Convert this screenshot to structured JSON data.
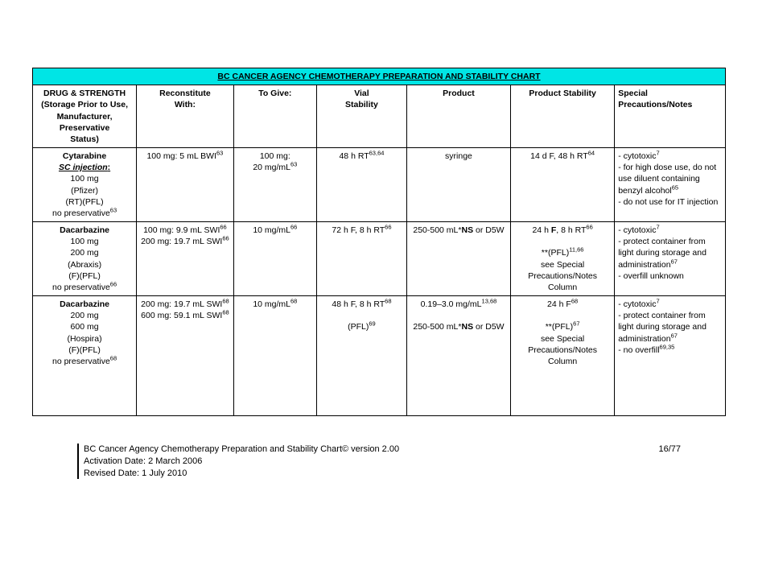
{
  "title": "BC CANCER AGENCY CHEMOTHERAPY PREPARATION AND STABILITY CHART",
  "columns": [
    "DRUG & STRENGTH\n(Storage Prior to Use,\nManufacturer, Preservative\nStatus)",
    "Reconstitute\nWith:",
    "To Give:",
    "Vial\nStability",
    "Product",
    "Product Stability",
    "Special\nPrecautions/Notes"
  ],
  "rows": [
    {
      "drug_name": "Cytarabine",
      "route": "SC injection",
      "strengths": [
        "100 mg"
      ],
      "manufacturer": "(Pfizer)",
      "storage": "(RT)(PFL)",
      "preservative": "no preservative",
      "pres_sup": "63",
      "reconstitute": [
        {
          "text": "100 mg: 5 mL BWI",
          "sup": "63"
        }
      ],
      "togive": [
        {
          "text": "100 mg:",
          "sup": ""
        },
        {
          "text": "20 mg/mL",
          "sup": "63"
        }
      ],
      "vialstab": [
        {
          "text": "48 h RT",
          "sup": "63,64"
        }
      ],
      "product": [
        {
          "text": "syringe",
          "sup": ""
        }
      ],
      "prodstab": [
        {
          "text": "14 d F, 48 h RT",
          "sup": "64"
        }
      ],
      "notes": [
        {
          "text": "- cytotoxic",
          "sup": "7"
        },
        {
          "text": "- for high dose use, do not use diluent containing benzyl alcohol",
          "sup": "65"
        },
        {
          "text": "- do not use for IT injection",
          "sup": ""
        }
      ]
    },
    {
      "drug_name": "Dacarbazine",
      "route": "",
      "strengths": [
        "100 mg",
        "200 mg"
      ],
      "manufacturer": "(Abraxis)",
      "storage": "(F)(PFL)",
      "preservative": "no preservative",
      "pres_sup": "66",
      "reconstitute": [
        {
          "text": "100 mg: 9.9 mL SWI",
          "sup": "66"
        },
        {
          "text": "200 mg: 19.7 mL SWI",
          "sup": "66"
        }
      ],
      "togive": [
        {
          "text": "10 mg/mL",
          "sup": "66"
        }
      ],
      "vialstab": [
        {
          "text": "72 h F, 8 h RT",
          "sup": "66"
        }
      ],
      "product": [
        {
          "html": "250-500 mL*<b>NS</b> or D5W",
          "sup": ""
        }
      ],
      "prodstab": [
        {
          "html": "24 h <b>F</b>, 8 h RT",
          "sup": "66"
        },
        {
          "text": "",
          "sup": ""
        },
        {
          "text": "**(PFL)",
          "sup": "11,66"
        },
        {
          "text": "see Special Precautions/Notes Column",
          "sup": ""
        }
      ],
      "notes": [
        {
          "text": "- cytotoxic",
          "sup": "7"
        },
        {
          "text": "- protect container from light during storage and administration",
          "sup": "67"
        },
        {
          "text": "- overfill unknown",
          "sup": ""
        }
      ]
    },
    {
      "drug_name": "Dacarbazine",
      "route": "",
      "strengths": [
        "200 mg",
        "600 mg"
      ],
      "manufacturer": "(Hospira)",
      "storage": "(F)(PFL)",
      "preservative": "no preservative",
      "pres_sup": "68",
      "reconstitute": [
        {
          "text": "200 mg: 19.7 mL SWI",
          "sup": "68"
        },
        {
          "text": "600 mg: 59.1 mL SWI",
          "sup": "68"
        }
      ],
      "togive": [
        {
          "text": "10 mg/mL",
          "sup": "68"
        }
      ],
      "vialstab": [
        {
          "text": "48 h F, 8 h RT",
          "sup": "68"
        },
        {
          "text": "",
          "sup": ""
        },
        {
          "text": "(PFL)",
          "sup": "69"
        }
      ],
      "product": [
        {
          "text": "0.19–3.0 mg/mL",
          "sup": "13,68"
        },
        {
          "text": "",
          "sup": ""
        },
        {
          "html": "250-500 mL*<b>NS</b> or D5W",
          "sup": ""
        }
      ],
      "prodstab": [
        {
          "text": "24 h F",
          "sup": "68"
        },
        {
          "text": "",
          "sup": ""
        },
        {
          "text": "**(PFL)",
          "sup": "67"
        },
        {
          "text": "see Special Precautions/Notes Column",
          "sup": ""
        }
      ],
      "notes": [
        {
          "text": "- cytotoxic",
          "sup": "7"
        },
        {
          "text": "- protect container from light during storage and administration",
          "sup": "67"
        },
        {
          "text": "- no overfill",
          "sup": "69,35"
        }
      ],
      "extra_pad": true
    }
  ],
  "col_widths": [
    "15%",
    "14%",
    "12%",
    "13%",
    "15%",
    "15%",
    "16%"
  ],
  "title_bg": "#00e5e5",
  "footer": {
    "line1": "BC Cancer Agency Chemotherapy Preparation and Stability Chart© version 2.00",
    "line2": "Activation Date: 2 March 2006",
    "line3": "Revised Date: 1 July 2010",
    "page": "16/77"
  }
}
